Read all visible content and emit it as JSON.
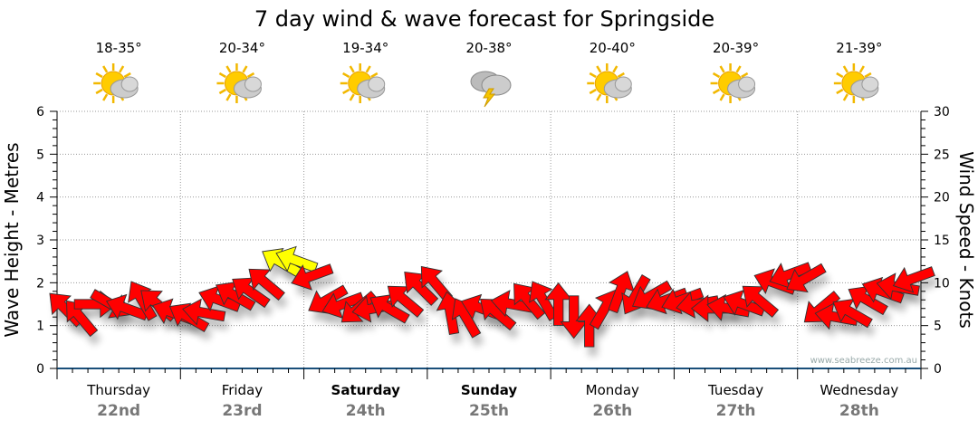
{
  "chart_data": {
    "type": "scatter",
    "title": "7 day wind & wave forecast for Springside",
    "ylabel_left": "Wave Height - Metres",
    "ylabel_right": "Wind Speed - Knots",
    "ylim_left": [
      0,
      6
    ],
    "ylim_right": [
      0,
      30
    ],
    "yticks_left": [
      "0",
      "1",
      "2",
      "3",
      "4",
      "5",
      "6"
    ],
    "yticks_right": [
      "0",
      "5",
      "10",
      "15",
      "20",
      "25",
      "30"
    ],
    "grid": true,
    "watermark": "www.seabreeze.com.au",
    "days": [
      {
        "day": "Thursday",
        "date": "22nd",
        "temp": "18-35°",
        "icon": "partly-cloudy",
        "weekend": false
      },
      {
        "day": "Friday",
        "date": "23rd",
        "temp": "20-34°",
        "icon": "partly-cloudy",
        "weekend": false
      },
      {
        "day": "Saturday",
        "date": "24th",
        "temp": "19-34°",
        "icon": "partly-cloudy",
        "weekend": true
      },
      {
        "day": "Sunday",
        "date": "25th",
        "temp": "20-38°",
        "icon": "thunderstorm",
        "weekend": true
      },
      {
        "day": "Monday",
        "date": "26th",
        "temp": "20-40°",
        "icon": "partly-cloudy",
        "weekend": false
      },
      {
        "day": "Tuesday",
        "date": "27th",
        "temp": "20-39°",
        "icon": "partly-cloudy",
        "weekend": false
      },
      {
        "day": "Wednesday",
        "date": "28th",
        "temp": "21-39°",
        "icon": "partly-cloudy",
        "weekend": false
      }
    ],
    "wind_series": {
      "name": "Wind speed (knots), 3-hourly",
      "speed": [
        7,
        6,
        7.5,
        7.5,
        7,
        8,
        7.5,
        6.5,
        6,
        6.5,
        8,
        8.5,
        9,
        10,
        12.4,
        12.6,
        10.8,
        8,
        7.5,
        7,
        7,
        7,
        8,
        9.5,
        10,
        6.5,
        6,
        7,
        6.5,
        7.5,
        8,
        8,
        7.5,
        6,
        5,
        7,
        9,
        8.5,
        8.5,
        8,
        8,
        7.5,
        7,
        7,
        7.5,
        8,
        10,
        11,
        10.5,
        7,
        6,
        6.5,
        8,
        9,
        9.5,
        10.5
      ],
      "direction_deg": [
        225,
        230,
        0,
        30,
        200,
        240,
        220,
        200,
        210,
        190,
        200,
        210,
        215,
        220,
        210,
        200,
        160,
        150,
        160,
        140,
        170,
        210,
        220,
        225,
        230,
        260,
        240,
        200,
        220,
        190,
        230,
        240,
        270,
        90,
        270,
        300,
        290,
        120,
        150,
        160,
        160,
        170,
        180,
        190,
        200,
        220,
        200,
        160,
        150,
        140,
        190,
        210,
        210,
        200,
        190,
        160
      ],
      "highlight_color": "#ffff00",
      "color": "#ff0000",
      "highlight_threshold_knots": 12
    }
  }
}
